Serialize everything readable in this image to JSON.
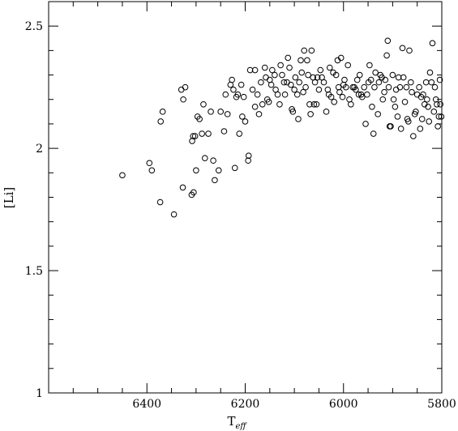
{
  "chart_data": {
    "type": "scatter",
    "title": "",
    "xlabel": "T",
    "xlabel_sub": "eff",
    "ylabel": "[Li]",
    "xlim": [
      6600,
      5800
    ],
    "ylim": [
      1,
      2.6
    ],
    "x_ticks": [
      6400,
      6200,
      6000,
      5800
    ],
    "x_tick_labels": [
      "6400",
      "6200",
      "6000",
      "5800"
    ],
    "y_ticks": [
      1,
      1.5,
      2,
      2.5
    ],
    "y_tick_labels": [
      "1",
      "1.5",
      "2",
      "2.5"
    ],
    "grid": false,
    "legend": "none",
    "marker": "open-circle",
    "series": [
      {
        "points": [
          [
            6450,
            1.89
          ],
          [
            6395,
            1.94
          ],
          [
            6390,
            1.91
          ],
          [
            6373,
            1.78
          ],
          [
            6372,
            2.11
          ],
          [
            6368,
            2.15
          ],
          [
            6345,
            1.73
          ],
          [
            6330,
            2.24
          ],
          [
            6327,
            1.84
          ],
          [
            6326,
            2.2
          ],
          [
            6322,
            2.25
          ],
          [
            6309,
            1.81
          ],
          [
            6305,
            1.82
          ],
          [
            6308,
            2.03
          ],
          [
            6306,
            2.05
          ],
          [
            6302,
            2.05
          ],
          [
            6300,
            1.91
          ],
          [
            6297,
            2.13
          ],
          [
            6293,
            2.12
          ],
          [
            6288,
            2.06
          ],
          [
            6285,
            2.18
          ],
          [
            6282,
            1.96
          ],
          [
            6275,
            2.06
          ],
          [
            6270,
            2.15
          ],
          [
            6265,
            1.95
          ],
          [
            6262,
            1.87
          ],
          [
            6254,
            1.91
          ],
          [
            6250,
            2.15
          ],
          [
            6243,
            2.07
          ],
          [
            6240,
            2.22
          ],
          [
            6236,
            2.14
          ],
          [
            6230,
            2.26
          ],
          [
            6227,
            2.28
          ],
          [
            6224,
            2.24
          ],
          [
            6221,
            1.92
          ],
          [
            6218,
            2.21
          ],
          [
            6215,
            2.22
          ],
          [
            6212,
            2.06
          ],
          [
            6208,
            2.26
          ],
          [
            6206,
            2.13
          ],
          [
            6203,
            2.21
          ],
          [
            6200,
            2.11
          ],
          [
            6194,
            1.95
          ],
          [
            6193,
            1.97
          ],
          [
            6190,
            2.32
          ],
          [
            6185,
            2.24
          ],
          [
            6180,
            2.32
          ],
          [
            6180,
            2.17
          ],
          [
            6175,
            2.22
          ],
          [
            6172,
            2.14
          ],
          [
            6168,
            2.27
          ],
          [
            6165,
            2.18
          ],
          [
            6160,
            2.33
          ],
          [
            6158,
            2.29
          ],
          [
            6155,
            2.2
          ],
          [
            6152,
            2.19
          ],
          [
            6150,
            2.28
          ],
          [
            6147,
            2.26
          ],
          [
            6145,
            2.32
          ],
          [
            6140,
            2.3
          ],
          [
            6138,
            2.24
          ],
          [
            6134,
            2.22
          ],
          [
            6130,
            2.18
          ],
          [
            6128,
            2.34
          ],
          [
            6125,
            2.3
          ],
          [
            6121,
            2.27
          ],
          [
            6119,
            2.22
          ],
          [
            6115,
            2.27
          ],
          [
            6113,
            2.37
          ],
          [
            6110,
            2.33
          ],
          [
            6107,
            2.26
          ],
          [
            6105,
            2.16
          ],
          [
            6103,
            2.15
          ],
          [
            6100,
            2.24
          ],
          [
            6098,
            2.29
          ],
          [
            6094,
            2.22
          ],
          [
            6092,
            2.12
          ],
          [
            6090,
            2.27
          ],
          [
            6087,
            2.36
          ],
          [
            6085,
            2.31
          ],
          [
            6082,
            2.23
          ],
          [
            6080,
            2.4
          ],
          [
            6077,
            2.25
          ],
          [
            6074,
            2.36
          ],
          [
            6072,
            2.3
          ],
          [
            6069,
            2.18
          ],
          [
            6067,
            2.14
          ],
          [
            6065,
            2.4
          ],
          [
            6062,
            2.29
          ],
          [
            6060,
            2.18
          ],
          [
            6058,
            2.27
          ],
          [
            6055,
            2.18
          ],
          [
            6053,
            2.29
          ],
          [
            6050,
            2.24
          ],
          [
            6047,
            2.32
          ],
          [
            6044,
            2.29
          ],
          [
            6040,
            2.27
          ],
          [
            6035,
            2.15
          ],
          [
            6032,
            2.24
          ],
          [
            6030,
            2.22
          ],
          [
            6028,
            2.33
          ],
          [
            6025,
            2.21
          ],
          [
            6021,
            2.31
          ],
          [
            6019,
            2.19
          ],
          [
            6015,
            2.3
          ],
          [
            6012,
            2.36
          ],
          [
            6010,
            2.25
          ],
          [
            6008,
            2.23
          ],
          [
            6005,
            2.37
          ],
          [
            6002,
            2.21
          ],
          [
            6000,
            2.26
          ],
          [
            5998,
            2.28
          ],
          [
            5995,
            2.25
          ],
          [
            5991,
            2.34
          ],
          [
            5988,
            2.2
          ],
          [
            5985,
            2.18
          ],
          [
            5981,
            2.25
          ],
          [
            5978,
            2.25
          ],
          [
            5975,
            2.24
          ],
          [
            5972,
            2.28
          ],
          [
            5969,
            2.22
          ],
          [
            5967,
            2.3
          ],
          [
            5964,
            2.22
          ],
          [
            5962,
            2.21
          ],
          [
            5958,
            2.25
          ],
          [
            5955,
            2.1
          ],
          [
            5952,
            2.22
          ],
          [
            5949,
            2.27
          ],
          [
            5947,
            2.34
          ],
          [
            5944,
            2.28
          ],
          [
            5942,
            2.17
          ],
          [
            5939,
            2.06
          ],
          [
            5937,
            2.25
          ],
          [
            5935,
            2.31
          ],
          [
            5930,
            2.14
          ],
          [
            5928,
            2.27
          ],
          [
            5925,
            2.3
          ],
          [
            5922,
            2.29
          ],
          [
            5920,
            2.2
          ],
          [
            5917,
            2.23
          ],
          [
            5915,
            2.28
          ],
          [
            5912,
            2.38
          ],
          [
            5910,
            2.44
          ],
          [
            5908,
            2.25
          ],
          [
            5906,
            2.09
          ],
          [
            5904,
            2.09
          ],
          [
            5900,
            2.3
          ],
          [
            5898,
            2.2
          ],
          [
            5895,
            2.17
          ],
          [
            5893,
            2.24
          ],
          [
            5890,
            2.13
          ],
          [
            5888,
            2.29
          ],
          [
            5885,
            2.25
          ],
          [
            5883,
            2.08
          ],
          [
            5880,
            2.41
          ],
          [
            5878,
            2.29
          ],
          [
            5875,
            2.19
          ],
          [
            5872,
            2.25
          ],
          [
            5870,
            2.12
          ],
          [
            5868,
            2.11
          ],
          [
            5866,
            2.4
          ],
          [
            5863,
            2.27
          ],
          [
            5861,
            2.23
          ],
          [
            5858,
            2.05
          ],
          [
            5855,
            2.14
          ],
          [
            5853,
            2.15
          ],
          [
            5850,
            2.22
          ],
          [
            5846,
            2.25
          ],
          [
            5844,
            2.08
          ],
          [
            5842,
            2.21
          ],
          [
            5840,
            2.12
          ],
          [
            5838,
            2.22
          ],
          [
            5835,
            2.18
          ],
          [
            5832,
            2.27
          ],
          [
            5830,
            2.2
          ],
          [
            5828,
            2.17
          ],
          [
            5826,
            2.11
          ],
          [
            5824,
            2.31
          ],
          [
            5821,
            2.27
          ],
          [
            5819,
            2.43
          ],
          [
            5816,
            2.15
          ],
          [
            5814,
            2.25
          ],
          [
            5812,
            2.2
          ],
          [
            5810,
            2.18
          ],
          [
            5808,
            2.09
          ],
          [
            5806,
            2.13
          ],
          [
            5804,
            2.28
          ],
          [
            5803,
            2.18
          ],
          [
            5801,
            2.13
          ]
        ]
      }
    ]
  }
}
